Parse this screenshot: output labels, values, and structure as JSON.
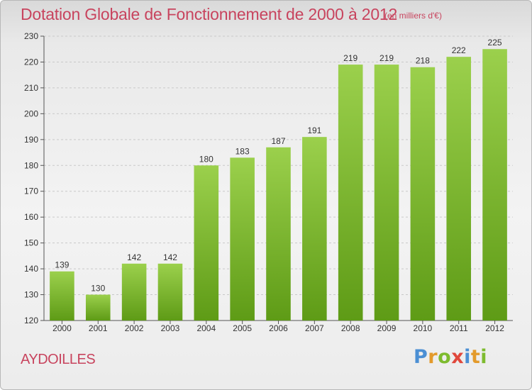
{
  "chart_data": {
    "type": "bar",
    "title": "Dotation Globale de Fonctionnement de 2000 à 2012",
    "subtitle": "(en milliers d'€)",
    "categories": [
      "2000",
      "2001",
      "2002",
      "2003",
      "2004",
      "2005",
      "2006",
      "2007",
      "2008",
      "2009",
      "2010",
      "2011",
      "2012"
    ],
    "values": [
      139,
      130,
      142,
      142,
      180,
      183,
      187,
      191,
      219,
      219,
      218,
      222,
      225
    ],
    "ylim": [
      120,
      230
    ],
    "yticks": [
      120,
      130,
      140,
      150,
      160,
      170,
      180,
      190,
      200,
      210,
      220,
      230
    ],
    "xlabel": "",
    "ylabel": "",
    "grid": true,
    "bar_color_top": "#9bd04c",
    "bar_color_bottom": "#5e9b16"
  },
  "commune": "AYDOILLES",
  "logo": {
    "letters": [
      "P",
      "r",
      "o",
      "x",
      "i",
      "t",
      "i"
    ],
    "colors": [
      "#4b8fd4",
      "#e39a2b",
      "#7dbb2e",
      "#e0483c",
      "#4b8fd4",
      "#e39a2b",
      "#7dbb2e"
    ]
  }
}
